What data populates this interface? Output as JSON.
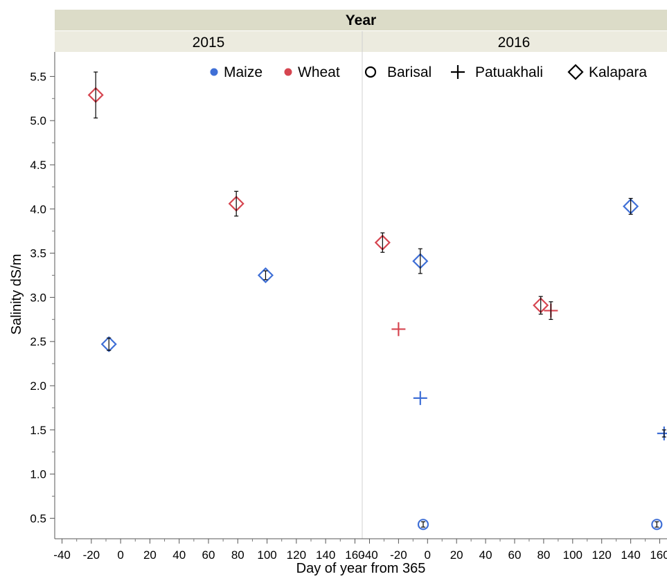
{
  "chart_data": {
    "type": "scatter",
    "facet_header": "Year",
    "panels": [
      "2015",
      "2016"
    ],
    "xlabel": "Day of year from 365",
    "ylabel": "Salinity dS/m",
    "xlim": [
      -45,
      165
    ],
    "ylim": [
      0.28,
      5.78
    ],
    "xticks": [
      -40,
      -20,
      0,
      20,
      40,
      60,
      80,
      100,
      120,
      140,
      160
    ],
    "yticks": [
      0.5,
      1.0,
      1.5,
      2.0,
      2.5,
      3.0,
      3.5,
      4.0,
      4.5,
      5.0,
      5.5
    ],
    "grid": false,
    "legend_position": "top-right",
    "legend": {
      "crops": [
        {
          "label": "Maize",
          "color": "#3f6fd6"
        },
        {
          "label": "Wheat",
          "color": "#d64550"
        }
      ],
      "sites": [
        {
          "label": "Barisal",
          "marker": "circle"
        },
        {
          "label": "Patuakhali",
          "marker": "plus"
        },
        {
          "label": "Kalapara",
          "marker": "diamond"
        }
      ]
    },
    "points": [
      {
        "panel": "2015",
        "crop": "Wheat",
        "site": "Kalapara",
        "x": -17,
        "y": 5.29,
        "err": 0.26
      },
      {
        "panel": "2015",
        "crop": "Maize",
        "site": "Kalapara",
        "x": -8,
        "y": 2.47,
        "err": 0.07
      },
      {
        "panel": "2015",
        "crop": "Wheat",
        "site": "Kalapara",
        "x": 79,
        "y": 4.06,
        "err": 0.14
      },
      {
        "panel": "2015",
        "crop": "Maize",
        "site": "Kalapara",
        "x": 99,
        "y": 3.25,
        "err": 0.05
      },
      {
        "panel": "2016",
        "crop": "Wheat",
        "site": "Kalapara",
        "x": -31,
        "y": 3.62,
        "err": 0.11
      },
      {
        "panel": "2016",
        "crop": "Wheat",
        "site": "Patuakhali",
        "x": -20,
        "y": 2.64,
        "err": 0
      },
      {
        "panel": "2016",
        "crop": "Maize",
        "site": "Kalapara",
        "x": -5,
        "y": 3.41,
        "err": 0.14
      },
      {
        "panel": "2016",
        "crop": "Maize",
        "site": "Patuakhali",
        "x": -5,
        "y": 1.86,
        "err": 0
      },
      {
        "panel": "2016",
        "crop": "Maize",
        "site": "Barisal",
        "x": -3,
        "y": 0.43,
        "err": 0.03
      },
      {
        "panel": "2016",
        "crop": "Wheat",
        "site": "Kalapara",
        "x": 78,
        "y": 2.91,
        "err": 0.1
      },
      {
        "panel": "2016",
        "crop": "Wheat",
        "site": "Patuakhali",
        "x": 85,
        "y": 2.85,
        "err": 0.1
      },
      {
        "panel": "2016",
        "crop": "Maize",
        "site": "Kalapara",
        "x": 140,
        "y": 4.03,
        "err": 0.09
      },
      {
        "panel": "2016",
        "crop": "Maize",
        "site": "Barisal",
        "x": 158,
        "y": 0.43,
        "err": 0.03
      },
      {
        "panel": "2016",
        "crop": "Maize",
        "site": "Patuakhali",
        "x": 163,
        "y": 1.46,
        "err": 0.04
      }
    ]
  }
}
